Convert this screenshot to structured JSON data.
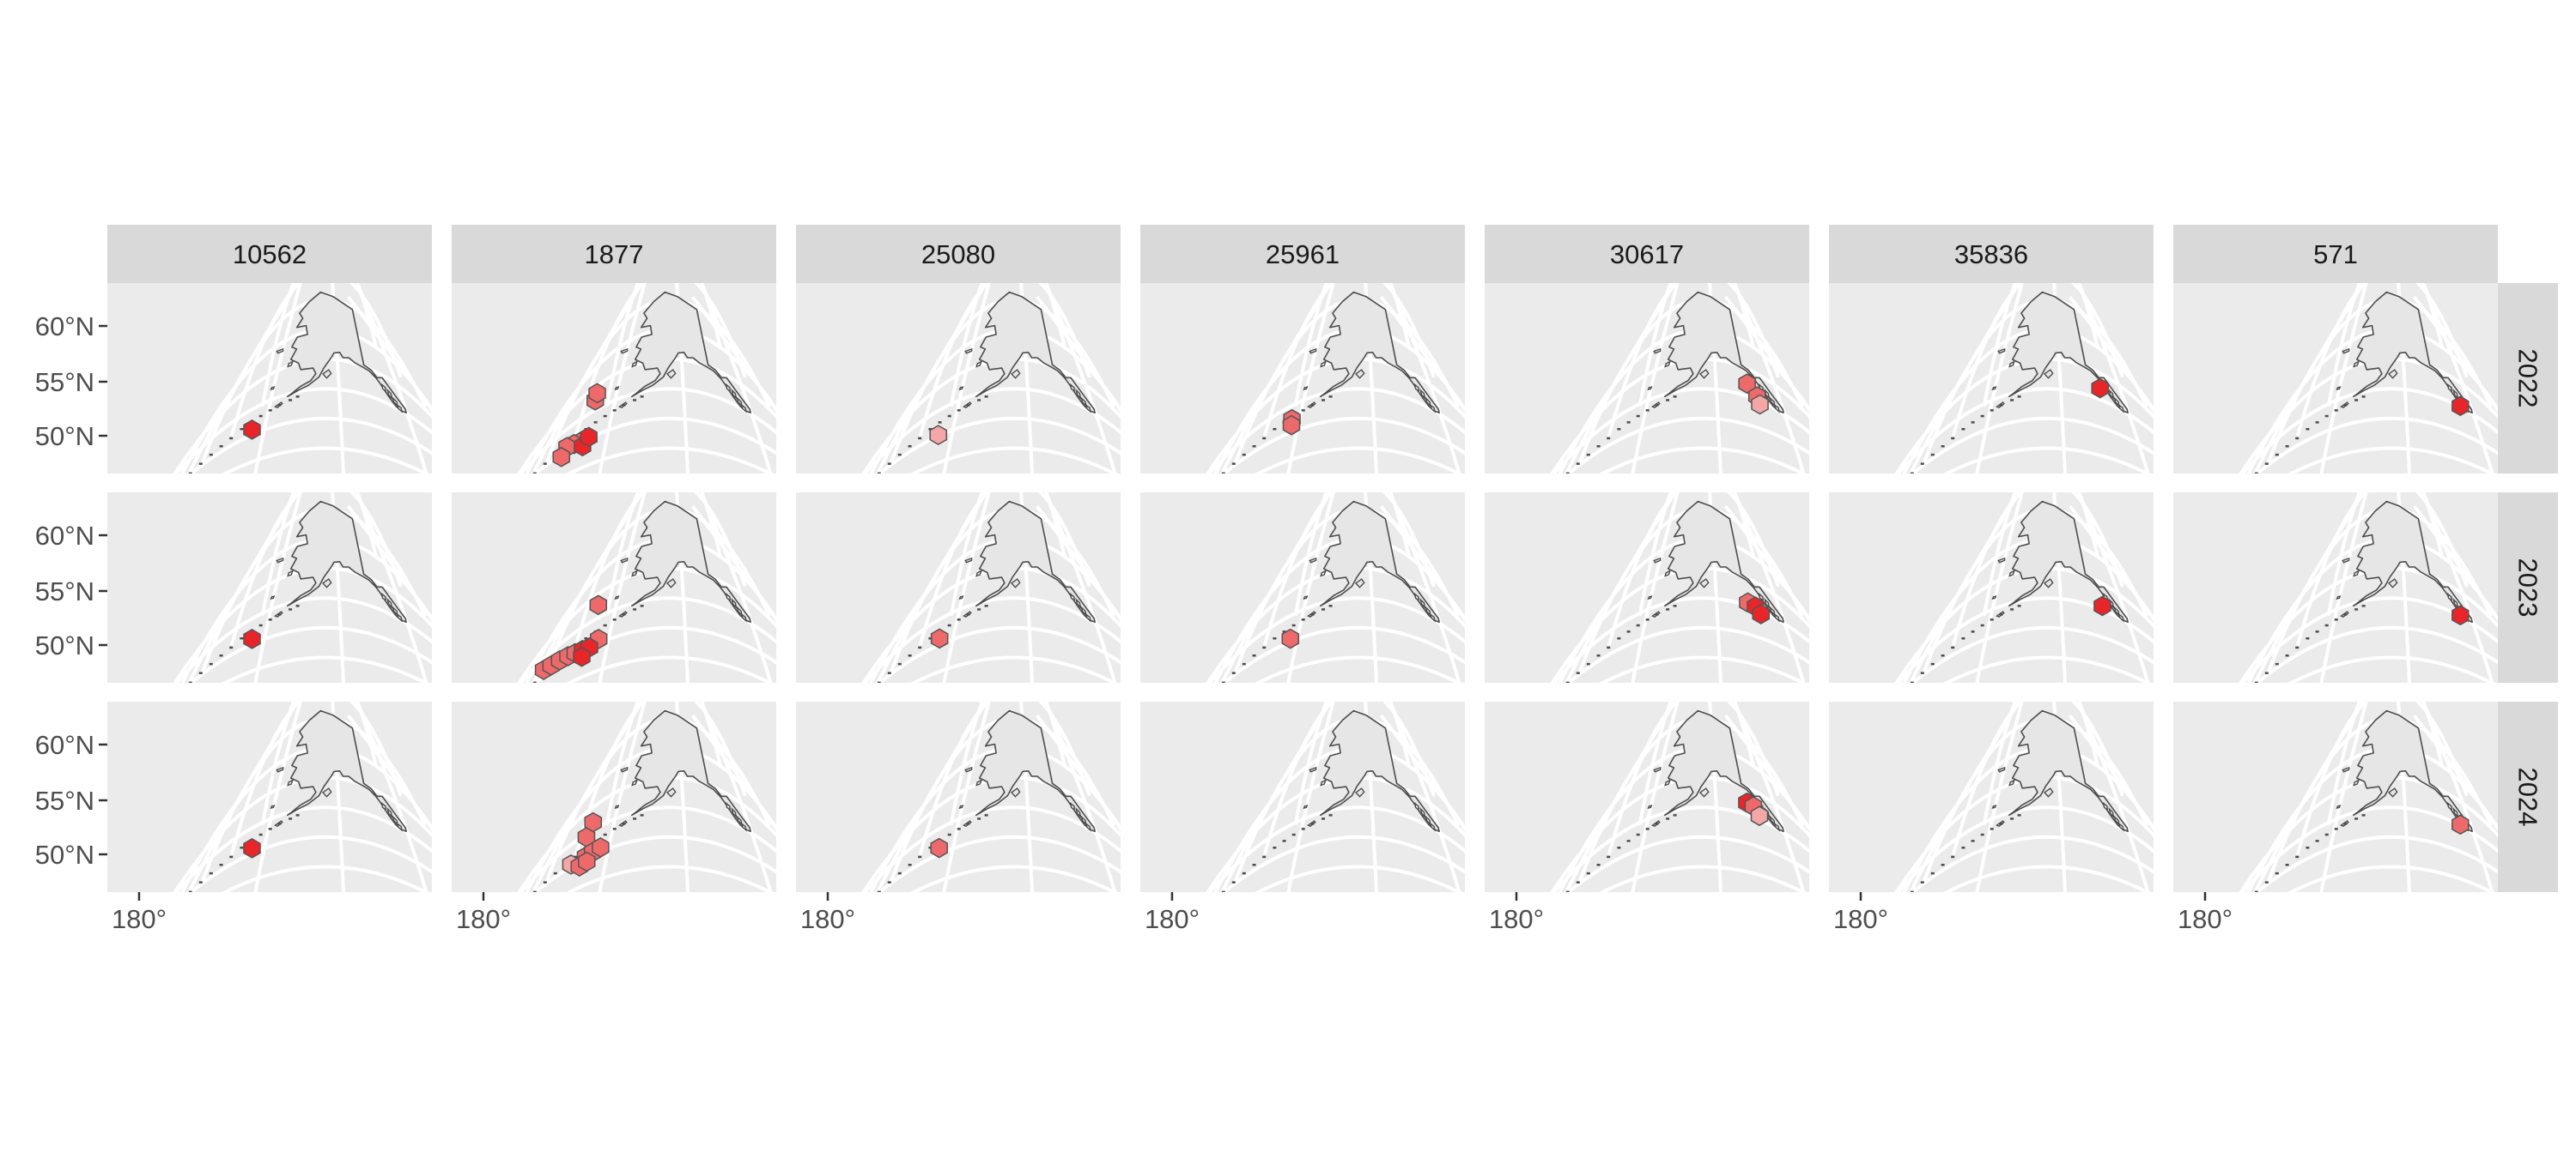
{
  "figure": {
    "columns": [
      "10562",
      "1877",
      "25080",
      "25961",
      "30617",
      "35836",
      "571"
    ],
    "rows": [
      "2022",
      "2023",
      "2024"
    ],
    "y_ticks": [
      "60°N",
      "55°N",
      "50°N"
    ],
    "x_tick": "180°"
  },
  "colors": {
    "background": "#ffffff",
    "panel": "#ebebeb",
    "strip": "#d9d9d9",
    "grid": "#ffffff",
    "land_fill": "#e6e6e6",
    "land_outline": "#4d4d4d",
    "axis_text": "#4d4d4d",
    "strip_text": "#1a1a1a",
    "hex_stroke": "#555555",
    "fill_high": "#e8262a",
    "fill_mid": "#ee6a6a",
    "fill_low": "#f3a7a7"
  },
  "hex_cells": {
    "10562": {
      "2022": [
        {
          "lon": -173.6,
          "lat": 51.0,
          "level": "high"
        }
      ],
      "2023": [
        {
          "lon": -173.6,
          "lat": 51.0,
          "level": "high"
        }
      ],
      "2024": [
        {
          "lon": -173.6,
          "lat": 51.0,
          "level": "high"
        }
      ]
    },
    "1877": {
      "2022": [
        {
          "lon": -177.0,
          "lat": 57.0,
          "level": "mid"
        },
        {
          "lon": -177.2,
          "lat": 58.3,
          "level": "mid"
        },
        {
          "lon": -177.4,
          "lat": 50.2,
          "level": "mid"
        },
        {
          "lon": -179.3,
          "lat": 50.5,
          "level": "mid"
        },
        {
          "lon": -181.3,
          "lat": 50.8,
          "level": "mid"
        },
        {
          "lon": -182.0,
          "lat": 49.4,
          "level": "mid"
        },
        {
          "lon": -176.4,
          "lat": 49.1,
          "level": "high"
        },
        {
          "lon": -175.3,
          "lat": 50.3,
          "level": "high"
        }
      ],
      "2023": [
        {
          "lon": -176.4,
          "lat": 57.6,
          "level": "mid"
        },
        {
          "lon": -188.2,
          "lat": 51.7,
          "level": "mid"
        },
        {
          "lon": -185.9,
          "lat": 51.3,
          "level": "mid"
        },
        {
          "lon": -183.4,
          "lat": 51.0,
          "level": "mid"
        },
        {
          "lon": -181.0,
          "lat": 50.7,
          "level": "mid"
        },
        {
          "lon": -178.9,
          "lat": 50.4,
          "level": "mid"
        },
        {
          "lon": -172.9,
          "lat": 50.8,
          "level": "mid"
        },
        {
          "lon": -176.9,
          "lat": 50.2,
          "level": "high"
        },
        {
          "lon": -175.0,
          "lat": 50.0,
          "level": "high"
        },
        {
          "lon": -176.5,
          "lat": 48.9,
          "level": "high"
        }
      ],
      "2024": [
        {
          "lon": -177.4,
          "lat": 56.6,
          "level": "mid"
        },
        {
          "lon": -178.0,
          "lat": 54.3,
          "level": "mid"
        },
        {
          "lon": -180.1,
          "lat": 50.5,
          "level": "low"
        },
        {
          "lon": -176.2,
          "lat": 50.4,
          "level": "mid"
        },
        {
          "lon": -174.4,
          "lat": 50.6,
          "level": "mid"
        },
        {
          "lon": -172.4,
          "lat": 50.8,
          "level": "mid"
        },
        {
          "lon": -177.2,
          "lat": 49.1,
          "level": "mid"
        },
        {
          "lon": -175.4,
          "lat": 49.3,
          "level": "mid"
        }
      ]
    },
    "25080": {
      "2022": [
        {
          "lon": -173.9,
          "lat": 50.2,
          "level": "low"
        }
      ],
      "2023": [
        {
          "lon": -174.0,
          "lat": 51.2,
          "level": "mid"
        }
      ],
      "2024": [
        {
          "lon": -174.1,
          "lat": 51.2,
          "level": "mid"
        }
      ]
    },
    "25961": {
      "2022": [
        {
          "lon": -172.3,
          "lat": 52.4,
          "level": "mid"
        },
        {
          "lon": -172.0,
          "lat": 51.3,
          "level": "mid"
        }
      ],
      "2023": [
        {
          "lon": -172.0,
          "lat": 50.6,
          "level": "mid"
        }
      ],
      "2024": []
    },
    "30617": {
      "2022": [
        {
          "lon": -140.2,
          "lat": 57.3,
          "level": "mid"
        },
        {
          "lon": -137.8,
          "lat": 55.7,
          "level": "mid"
        },
        {
          "lon": -137.5,
          "lat": 54.4,
          "level": "low"
        }
      ],
      "2023": [
        {
          "lon": -140.6,
          "lat": 55.6,
          "level": "mid"
        },
        {
          "lon": -138.4,
          "lat": 55.4,
          "level": "high"
        },
        {
          "lon": -137.2,
          "lat": 54.4,
          "level": "high"
        }
      ],
      "2024": [
        {
          "lon": -140.3,
          "lat": 57.2,
          "level": "high"
        },
        {
          "lon": -138.4,
          "lat": 57.0,
          "level": "mid"
        },
        {
          "lon": -137.1,
          "lat": 55.7,
          "level": "low"
        }
      ]
    },
    "35836": {
      "2022": [
        {
          "lon": -137.6,
          "lat": 57.1,
          "level": "high"
        }
      ],
      "2023": [
        {
          "lon": -137.5,
          "lat": 55.7,
          "level": "high"
        }
      ],
      "2024": []
    },
    "571": {
      "2022": [
        {
          "lon": -133.7,
          "lat": 55.2,
          "level": "high"
        }
      ],
      "2023": [
        {
          "lon": -133.7,
          "lat": 55.2,
          "level": "high"
        }
      ],
      "2024": [
        {
          "lon": -133.7,
          "lat": 55.2,
          "level": "mid"
        }
      ]
    }
  }
}
